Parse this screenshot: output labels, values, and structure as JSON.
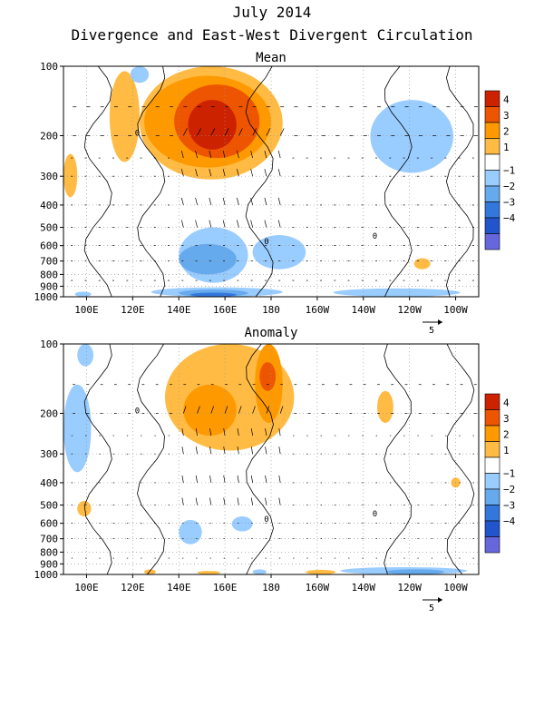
{
  "header": {
    "title": "July 2014",
    "subtitle": "Divergence and East-West Divergent Circulation"
  },
  "chart_data": [
    {
      "type": "heatmap",
      "title": "Mean",
      "xlabel": "",
      "ylabel": "",
      "x_ticks": [
        "100E",
        "120E",
        "140E",
        "160E",
        "180",
        "160W",
        "140W",
        "120W",
        "100W"
      ],
      "x_tick_lon": [
        100,
        120,
        140,
        160,
        180,
        200,
        220,
        240,
        260
      ],
      "xlim_lon": [
        90,
        270
      ],
      "y_ticks": [
        100,
        200,
        300,
        400,
        500,
        600,
        700,
        800,
        900,
        1000
      ],
      "y_tick_labels": [
        "100",
        "200",
        "300",
        "400",
        "500",
        "600",
        "700",
        "800",
        "900",
        "1000"
      ],
      "ylim_hPa": [
        100,
        1000
      ],
      "y_scale": "log",
      "grid": true,
      "colorbar": {
        "levels": [
          -4,
          -3,
          -2,
          -1,
          1,
          2,
          3,
          4
        ],
        "labels": [
          "4",
          "3",
          "2",
          "1",
          "−1",
          "−2",
          "−3",
          "−4"
        ],
        "colors": [
          "#cc2200",
          "#ee5500",
          "#ff9900",
          "#ffbb44",
          "#ffffff",
          "#99ccff",
          "#66aaee",
          "#3377dd",
          "#2255cc",
          "#6666dd"
        ]
      },
      "contour_label": "0",
      "vector_ref": "5",
      "regions": [
        {
          "lon0": 110,
          "lon1": 123,
          "p0": 105,
          "p1": 260,
          "level": 2
        },
        {
          "lon0": 123,
          "lon1": 185,
          "p0": 100,
          "p1": 310,
          "level": 2
        },
        {
          "lon0": 125,
          "lon1": 180,
          "p0": 110,
          "p1": 275,
          "level": 3
        },
        {
          "lon0": 138,
          "lon1": 175,
          "p0": 120,
          "p1": 250,
          "level": 4
        },
        {
          "lon0": 144,
          "lon1": 165,
          "p0": 140,
          "p1": 230,
          "level": 5
        },
        {
          "lon0": 90,
          "lon1": 96,
          "p0": 240,
          "p1": 370,
          "level": 2
        },
        {
          "lon0": 119,
          "lon1": 127,
          "p0": 100,
          "p1": 118,
          "level": -1
        },
        {
          "lon0": 223,
          "lon1": 259,
          "p0": 140,
          "p1": 290,
          "level": -1
        },
        {
          "lon0": 140,
          "lon1": 170,
          "p0": 500,
          "p1": 870,
          "level": -1
        },
        {
          "lon0": 140,
          "lon1": 165,
          "p0": 590,
          "p1": 800,
          "level": -2
        },
        {
          "lon0": 172,
          "lon1": 195,
          "p0": 540,
          "p1": 760,
          "level": -1
        },
        {
          "lon0": 128,
          "lon1": 185,
          "p0": 910,
          "p1": 1000,
          "level": -1
        },
        {
          "lon0": 140,
          "lon1": 170,
          "p0": 930,
          "p1": 1000,
          "level": -2
        },
        {
          "lon0": 145,
          "lon1": 165,
          "p0": 960,
          "p1": 1000,
          "level": -3
        },
        {
          "lon0": 95,
          "lon1": 102,
          "p0": 950,
          "p1": 1000,
          "level": -1
        },
        {
          "lon0": 207,
          "lon1": 262,
          "p0": 920,
          "p1": 1000,
          "level": -1
        },
        {
          "lon0": 242,
          "lon1": 249,
          "p0": 680,
          "p1": 760,
          "level": 2
        }
      ]
    },
    {
      "type": "heatmap",
      "title": "Anomaly",
      "xlabel": "",
      "ylabel": "",
      "x_ticks": [
        "100E",
        "120E",
        "140E",
        "160E",
        "180",
        "160W",
        "140W",
        "120W",
        "100W"
      ],
      "x_tick_lon": [
        100,
        120,
        140,
        160,
        180,
        200,
        220,
        240,
        260
      ],
      "xlim_lon": [
        90,
        270
      ],
      "y_ticks": [
        100,
        200,
        300,
        400,
        500,
        600,
        700,
        800,
        900,
        1000
      ],
      "y_tick_labels": [
        "100",
        "200",
        "300",
        "400",
        "500",
        "600",
        "700",
        "800",
        "900",
        "1000"
      ],
      "ylim_hPa": [
        100,
        1000
      ],
      "y_scale": "log",
      "grid": true,
      "colorbar": {
        "levels": [
          -4,
          -3,
          -2,
          -1,
          1,
          2,
          3,
          4
        ],
        "labels": [
          "4",
          "3",
          "2",
          "1",
          "−1",
          "−2",
          "−3",
          "−4"
        ],
        "colors": [
          "#cc2200",
          "#ee5500",
          "#ff9900",
          "#ffbb44",
          "#ffffff",
          "#99ccff",
          "#66aaee",
          "#3377dd",
          "#2255cc",
          "#6666dd"
        ]
      },
      "contour_label": "0",
      "vector_ref": "5",
      "regions": [
        {
          "lon0": 134,
          "lon1": 190,
          "p0": 100,
          "p1": 290,
          "level": 2
        },
        {
          "lon0": 142,
          "lon1": 165,
          "p0": 150,
          "p1": 250,
          "level": 3
        },
        {
          "lon0": 173,
          "lon1": 185,
          "p0": 100,
          "p1": 220,
          "level": 3
        },
        {
          "lon0": 175,
          "lon1": 182,
          "p0": 120,
          "p1": 160,
          "level": 4
        },
        {
          "lon0": 90,
          "lon1": 102,
          "p0": 150,
          "p1": 360,
          "level": -1
        },
        {
          "lon0": 96,
          "lon1": 103,
          "p0": 100,
          "p1": 125,
          "level": -1
        },
        {
          "lon0": 226,
          "lon1": 233,
          "p0": 160,
          "p1": 220,
          "level": 2
        },
        {
          "lon0": 96,
          "lon1": 102,
          "p0": 480,
          "p1": 560,
          "level": 2
        },
        {
          "lon0": 140,
          "lon1": 150,
          "p0": 580,
          "p1": 740,
          "level": -1
        },
        {
          "lon0": 163,
          "lon1": 172,
          "p0": 560,
          "p1": 650,
          "level": -1
        },
        {
          "lon0": 210,
          "lon1": 265,
          "p0": 930,
          "p1": 1000,
          "level": -1
        },
        {
          "lon0": 230,
          "lon1": 255,
          "p0": 950,
          "p1": 1000,
          "level": -2
        },
        {
          "lon0": 125,
          "lon1": 130,
          "p0": 950,
          "p1": 1000,
          "level": 2
        },
        {
          "lon0": 148,
          "lon1": 158,
          "p0": 965,
          "p1": 1000,
          "level": 2
        },
        {
          "lon0": 195,
          "lon1": 208,
          "p0": 955,
          "p1": 1000,
          "level": 2
        },
        {
          "lon0": 172,
          "lon1": 178,
          "p0": 950,
          "p1": 1000,
          "level": -1
        },
        {
          "lon0": 258,
          "lon1": 262,
          "p0": 380,
          "p1": 420,
          "level": 2
        }
      ]
    }
  ]
}
